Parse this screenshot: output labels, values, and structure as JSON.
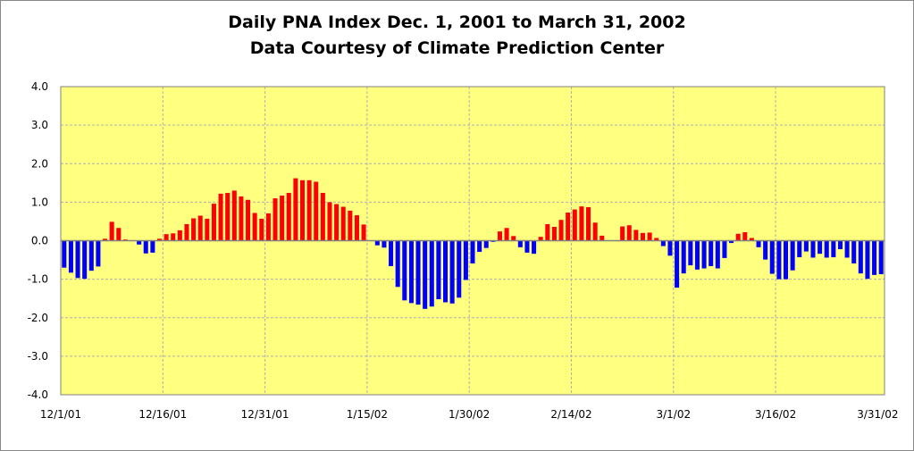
{
  "chart_data": {
    "type": "bar",
    "title": "Daily PNA Index Dec. 1, 2001 to March 31, 2002",
    "subtitle": "Data Courtesy of Climate Prediction Center",
    "xlabel": "",
    "ylabel": "",
    "ylim": [
      -4.0,
      4.0
    ],
    "yticks": [
      "4.0",
      "3.0",
      "2.0",
      "1.0",
      "0.0",
      "-1.0",
      "-2.0",
      "-3.0",
      "-4.0"
    ],
    "yticks_values": [
      4,
      3,
      2,
      1,
      0,
      -1,
      -2,
      -3,
      -4
    ],
    "xticks": [
      "12/1/01",
      "12/16/01",
      "12/31/01",
      "1/15/02",
      "1/30/02",
      "2/14/02",
      "3/1/02",
      "3/16/02",
      "3/31/02"
    ],
    "xticks_day_index": [
      0,
      15,
      30,
      45,
      60,
      75,
      90,
      105,
      120
    ],
    "grid": true,
    "colors": {
      "positive": "#ff0000",
      "negative": "#0000ff",
      "plot_bg": "#ffff80",
      "grid": "#b0b0b0",
      "axis": "#808080"
    },
    "values": [
      -0.7,
      -0.83,
      -0.97,
      -0.99,
      -0.78,
      -0.67,
      0.05,
      0.49,
      0.33,
      0.03,
      0,
      -0.1,
      -0.33,
      -0.31,
      0.05,
      0.17,
      0.19,
      0.27,
      0.43,
      0.58,
      0.65,
      0.57,
      0.96,
      1.22,
      1.24,
      1.3,
      1.15,
      1.06,
      0.72,
      0.57,
      0.71,
      1.1,
      1.17,
      1.24,
      1.62,
      1.57,
      1.57,
      1.53,
      1.24,
      1.0,
      0.95,
      0.88,
      0.78,
      0.66,
      0.42,
      0,
      -0.12,
      -0.18,
      -0.66,
      -1.2,
      -1.55,
      -1.62,
      -1.66,
      -1.77,
      -1.71,
      -1.52,
      -1.6,
      -1.63,
      -1.48,
      -1.02,
      -0.59,
      -0.29,
      -0.19,
      -0.03,
      0.24,
      0.33,
      0.12,
      -0.17,
      -0.31,
      -0.34,
      0.1,
      0.43,
      0.36,
      0.54,
      0.73,
      0.81,
      0.89,
      0.87,
      0.47,
      0.13,
      0,
      0,
      0.37,
      0.4,
      0.28,
      0.2,
      0.21,
      0.07,
      -0.14,
      -0.39,
      -1.22,
      -0.85,
      -0.64,
      -0.75,
      -0.72,
      -0.66,
      -0.72,
      -0.45,
      -0.06,
      0.18,
      0.22,
      0.07,
      -0.17,
      -0.49,
      -0.86,
      -1.0,
      -1.0,
      -0.77,
      -0.43,
      -0.28,
      -0.44,
      -0.34,
      -0.44,
      -0.43,
      -0.22,
      -0.44,
      -0.59,
      -0.85,
      -0.99,
      -0.89,
      -0.87
    ]
  }
}
